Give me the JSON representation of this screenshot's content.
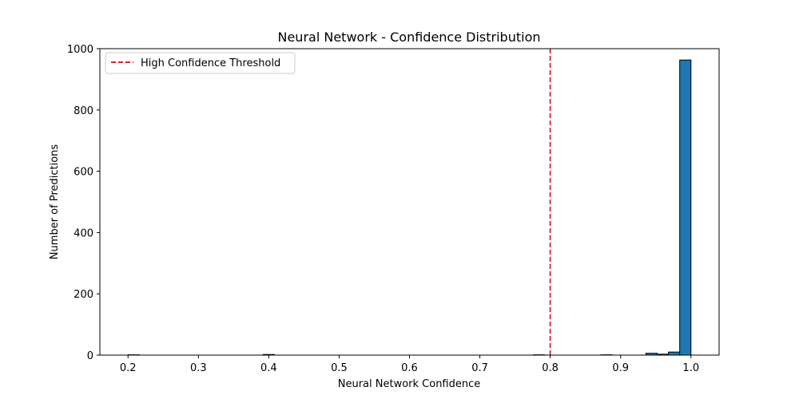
{
  "chart_data": {
    "type": "bar",
    "title": "Neural Network - Confidence Distribution",
    "xlabel": "Neural Network Confidence",
    "ylabel": "Number of Predictions",
    "xlim": [
      0.16,
      1.04
    ],
    "ylim": [
      0,
      1000
    ],
    "xticks": [
      0.2,
      0.3,
      0.4,
      0.5,
      0.6,
      0.7,
      0.8,
      0.9,
      1.0
    ],
    "xtick_labels": [
      "0.2",
      "0.3",
      "0.4",
      "0.5",
      "0.6",
      "0.7",
      "0.8",
      "0.9",
      "1.0"
    ],
    "yticks": [
      0,
      200,
      400,
      600,
      800,
      1000
    ],
    "ytick_labels": [
      "0",
      "200",
      "400",
      "600",
      "800",
      "1000"
    ],
    "bar_color": "#1f77b4",
    "bar_edge_color": "#000000",
    "bins": [
      {
        "x0": 0.2,
        "x1": 0.216,
        "value": 1
      },
      {
        "x0": 0.392,
        "x1": 0.408,
        "value": 2
      },
      {
        "x0": 0.776,
        "x1": 0.792,
        "value": 1
      },
      {
        "x0": 0.872,
        "x1": 0.888,
        "value": 1
      },
      {
        "x0": 0.936,
        "x1": 0.952,
        "value": 6
      },
      {
        "x0": 0.952,
        "x1": 0.968,
        "value": 3
      },
      {
        "x0": 0.968,
        "x1": 0.984,
        "value": 10
      },
      {
        "x0": 0.984,
        "x1": 1.0,
        "value": 963
      }
    ],
    "threshold": {
      "x": 0.8,
      "label": "High Confidence Threshold",
      "color": "#d62728",
      "style": "dashed"
    },
    "legend": {
      "placement": "upper-left"
    },
    "grid": false
  }
}
